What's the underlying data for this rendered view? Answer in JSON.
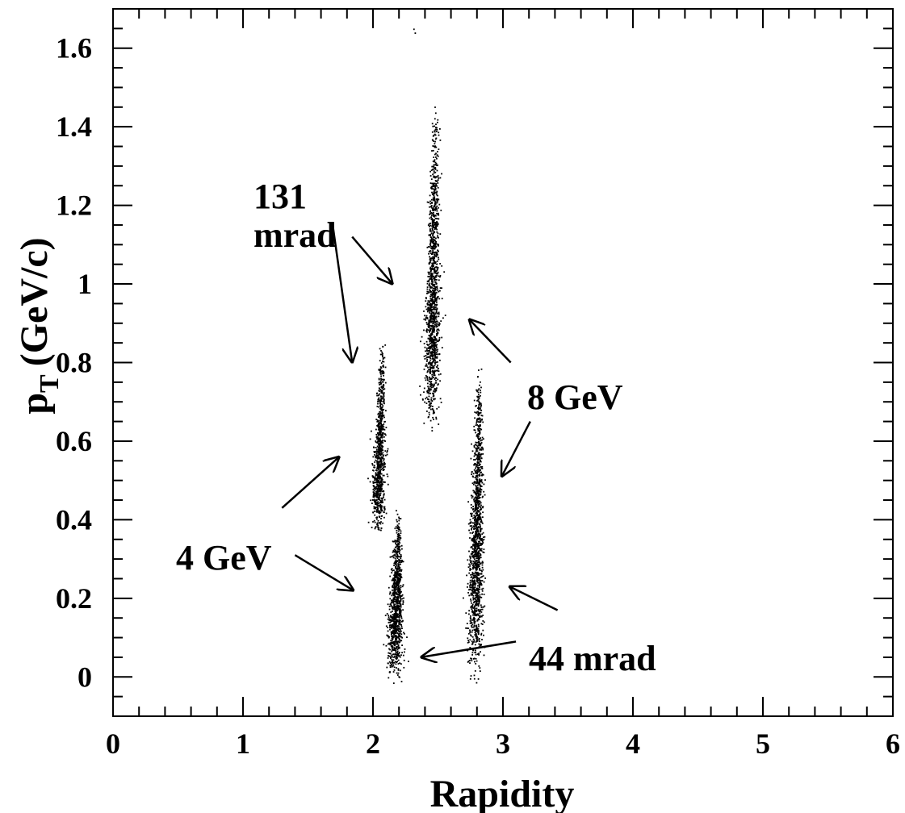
{
  "chart_data": {
    "type": "scatter",
    "title": "",
    "xlabel": "Rapidity",
    "ylabel_main": "p",
    "ylabel_sub": "T",
    "ylabel_unit": "(GeV/c)",
    "xlim": [
      0,
      6
    ],
    "ylim": [
      -0.1,
      1.7
    ],
    "x_ticks": [
      0,
      1,
      2,
      3,
      4,
      5,
      6
    ],
    "y_ticks": [
      0,
      0.2,
      0.4,
      0.6,
      0.8,
      1.0,
      1.2,
      1.4,
      1.6
    ],
    "x_tick_labels": [
      "0",
      "1",
      "2",
      "3",
      "4",
      "5",
      "6"
    ],
    "y_tick_labels": [
      "0",
      "0.2",
      "0.4",
      "0.6",
      "0.8",
      "1",
      "1.2",
      "1.4",
      "1.6"
    ],
    "grid": false,
    "legend": "none",
    "marker_color": "#000000",
    "clusters": [
      {
        "angle": "131 mrad",
        "energy": "4 GeV",
        "y_center": 2.04,
        "y_spread": 0.04,
        "pt_min": 0.36,
        "pt_max": 0.86,
        "pt_mode": 0.48,
        "count": 900
      },
      {
        "angle": "44 mrad",
        "energy": "4 GeV",
        "y_center": 2.17,
        "y_spread": 0.05,
        "pt_min": -0.02,
        "pt_max": 0.43,
        "pt_mode": 0.15,
        "count": 1000
      },
      {
        "angle": "131 mrad",
        "energy": "8 GeV",
        "y_center": 2.45,
        "y_spread": 0.05,
        "pt_min": 0.62,
        "pt_max": 1.47,
        "pt_mode": 0.85,
        "count": 1300
      },
      {
        "angle": "44 mrad",
        "energy": "8 GeV",
        "y_center": 2.79,
        "y_spread": 0.05,
        "pt_min": -0.02,
        "pt_max": 0.8,
        "pt_mode": 0.3,
        "count": 1400
      }
    ],
    "outliers": [
      {
        "x": 2.31,
        "y": 1.65
      },
      {
        "x": 2.32,
        "y": 1.64
      }
    ],
    "annotations": [
      {
        "id": "131-mrad",
        "lines": [
          "131",
          "mrad"
        ]
      },
      {
        "id": "8-gev",
        "lines": [
          "8 GeV"
        ]
      },
      {
        "id": "4-gev",
        "lines": [
          "4 GeV"
        ]
      },
      {
        "id": "44-mrad",
        "lines": [
          "44 mrad"
        ]
      }
    ],
    "arrows": [
      {
        "from": [
          1.69,
          1.15
        ],
        "to": [
          1.84,
          0.8
        ]
      },
      {
        "from": [
          1.84,
          1.12
        ],
        "to": [
          2.15,
          1.0
        ]
      },
      {
        "from": [
          3.06,
          0.8
        ],
        "to": [
          2.74,
          0.91
        ]
      },
      {
        "from": [
          3.21,
          0.65
        ],
        "to": [
          2.99,
          0.51
        ]
      },
      {
        "from": [
          1.3,
          0.43
        ],
        "to": [
          1.74,
          0.56
        ]
      },
      {
        "from": [
          1.4,
          0.31
        ],
        "to": [
          1.85,
          0.22
        ]
      },
      {
        "from": [
          3.42,
          0.17
        ],
        "to": [
          3.05,
          0.23
        ]
      },
      {
        "from": [
          3.1,
          0.09
        ],
        "to": [
          2.37,
          0.05
        ]
      }
    ]
  }
}
